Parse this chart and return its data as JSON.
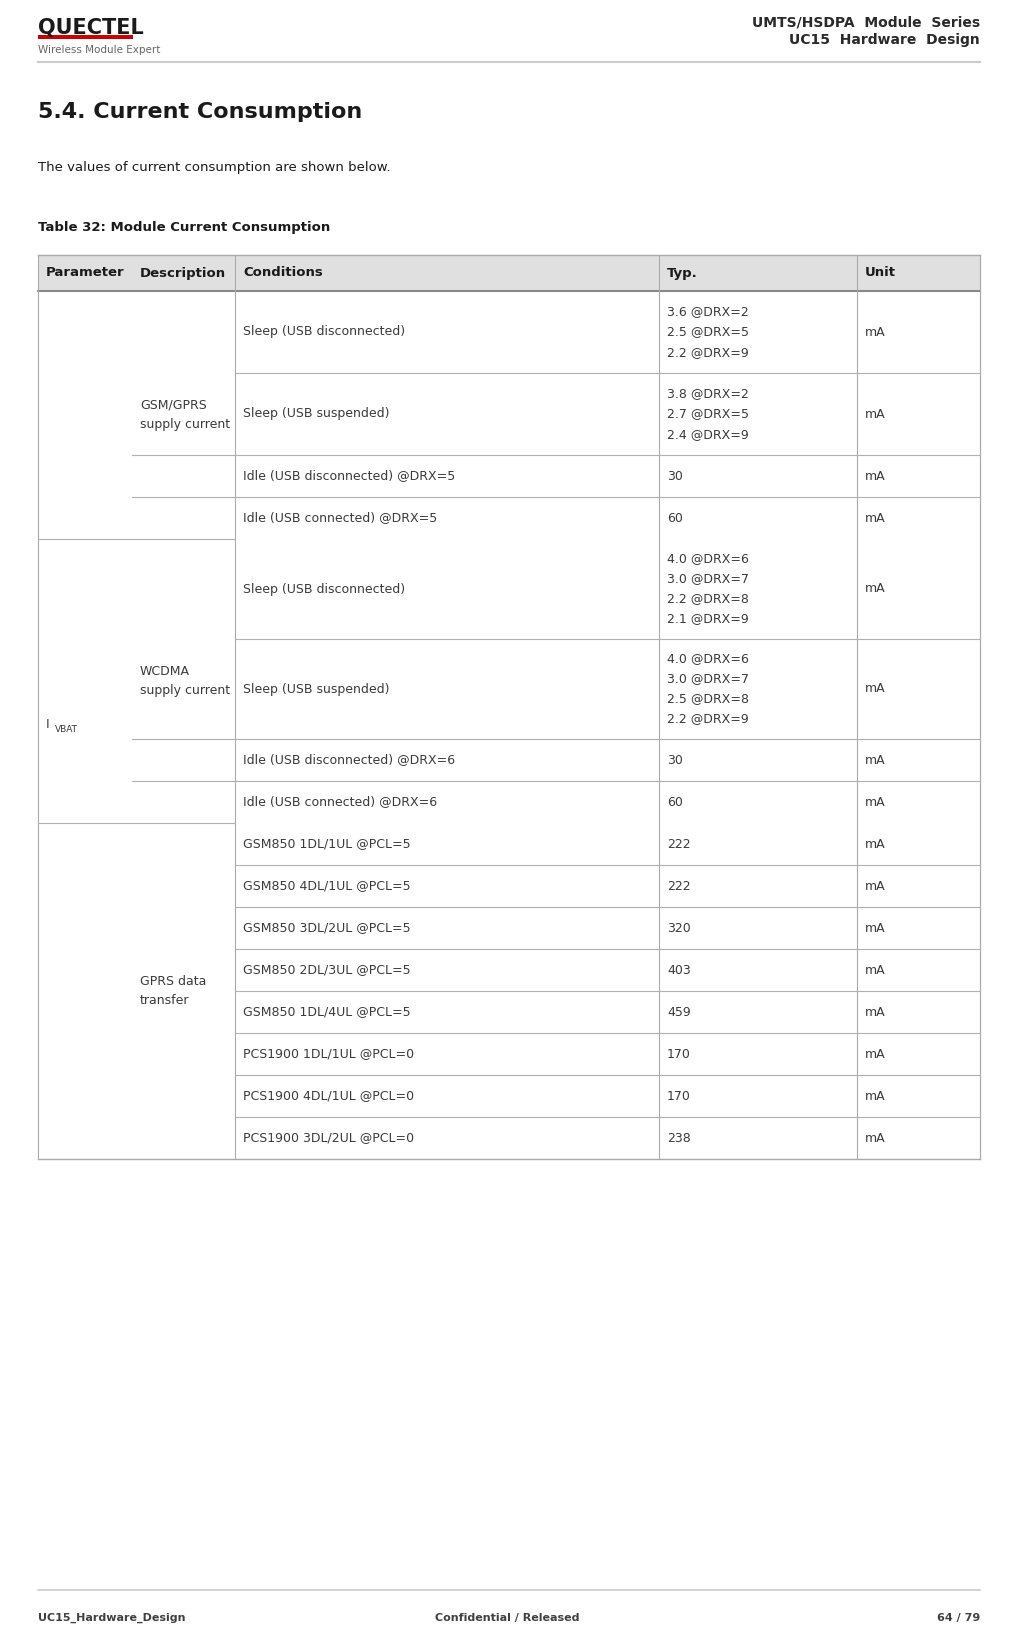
{
  "page_title_line1": "UMTS/HSDPA  Module  Series",
  "page_title_line2": "UC15  Hardware  Design",
  "company_name": "QUECTEL",
  "company_subtitle": "Wireless Module Expert",
  "section_title": "5.4. Current Consumption",
  "section_text": "The values of current consumption are shown below.",
  "table_title": "Table 32: Module Current Consumption",
  "footer_left": "UC15_Hardware_Design",
  "footer_center": "Confidential / Released",
  "footer_right": "64 / 79",
  "header_bg": "#e0e0e0",
  "header_cols": [
    "Parameter",
    "Description",
    "Conditions",
    "Typ.",
    "Unit"
  ],
  "row_defs": [
    {
      "cond": "Sleep (USB disconnected)",
      "typ": [
        "3.6 @DRX=2",
        "2.5 @DRX=5",
        "2.2 @DRX=9"
      ],
      "unit": "mA",
      "divider": false
    },
    {
      "cond": "Sleep (USB suspended)",
      "typ": [
        "3.8 @DRX=2",
        "2.7 @DRX=5",
        "2.4 @DRX=9"
      ],
      "unit": "mA",
      "divider": true
    },
    {
      "cond": "Idle (USB disconnected) @DRX=5",
      "typ": [
        "30"
      ],
      "unit": "mA",
      "divider": true
    },
    {
      "cond": "Idle (USB connected) @DRX=5",
      "typ": [
        "60"
      ],
      "unit": "mA",
      "divider": true
    },
    {
      "cond": "Sleep (USB disconnected)",
      "typ": [
        "4.0 @DRX=6",
        "3.0 @DRX=7",
        "2.2 @DRX=8",
        "2.1 @DRX=9"
      ],
      "unit": "mA",
      "divider": false
    },
    {
      "cond": "Sleep (USB suspended)",
      "typ": [
        "4.0 @DRX=6",
        "3.0 @DRX=7",
        "2.5 @DRX=8",
        "2.2 @DRX=9"
      ],
      "unit": "mA",
      "divider": true
    },
    {
      "cond": "Idle (USB disconnected) @DRX=6",
      "typ": [
        "30"
      ],
      "unit": "mA",
      "divider": true
    },
    {
      "cond": "Idle (USB connected) @DRX=6",
      "typ": [
        "60"
      ],
      "unit": "mA",
      "divider": true
    },
    {
      "cond": "GSM850 1DL/1UL @PCL=5",
      "typ": [
        "222"
      ],
      "unit": "mA",
      "divider": false
    },
    {
      "cond": "GSM850 4DL/1UL @PCL=5",
      "typ": [
        "222"
      ],
      "unit": "mA",
      "divider": true
    },
    {
      "cond": "GSM850 3DL/2UL @PCL=5",
      "typ": [
        "320"
      ],
      "unit": "mA",
      "divider": true
    },
    {
      "cond": "GSM850 2DL/3UL @PCL=5",
      "typ": [
        "403"
      ],
      "unit": "mA",
      "divider": true
    },
    {
      "cond": "GSM850 1DL/4UL @PCL=5",
      "typ": [
        "459"
      ],
      "unit": "mA",
      "divider": true
    },
    {
      "cond": "PCS1900 1DL/1UL @PCL=0",
      "typ": [
        "170"
      ],
      "unit": "mA",
      "divider": true
    },
    {
      "cond": "PCS1900 4DL/1UL @PCL=0",
      "typ": [
        "170"
      ],
      "unit": "mA",
      "divider": true
    },
    {
      "cond": "PCS1900 3DL/2UL @PCL=0",
      "typ": [
        "238"
      ],
      "unit": "mA",
      "divider": true
    }
  ],
  "desc_groups": [
    {
      "start": 0,
      "end": 3,
      "text": "GSM/GPRS\nsupply current"
    },
    {
      "start": 4,
      "end": 7,
      "text": "WCDMA\nsupply current"
    },
    {
      "start": 8,
      "end": 15,
      "text": "GPRS data\ntransfer"
    }
  ],
  "bg_color": "#ffffff",
  "text_color": "#3a3a3a",
  "header_text_color": "#1a1a1a",
  "line_color": "#b0b0b0",
  "line_color_dark": "#888888"
}
